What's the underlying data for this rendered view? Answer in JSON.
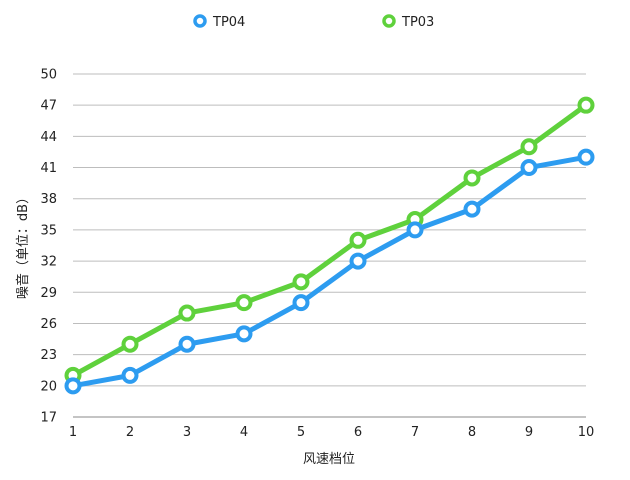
{
  "chart_data": {
    "type": "line",
    "xlabel": "风速档位",
    "ylabel": "噪音（单位：dB）",
    "x": [
      1,
      2,
      3,
      4,
      5,
      6,
      7,
      8,
      9,
      10
    ],
    "ylim": [
      17,
      50
    ],
    "yticks": [
      17,
      20,
      23,
      26,
      29,
      32,
      35,
      38,
      41,
      44,
      47,
      50
    ],
    "grid": true,
    "legend_position": "top",
    "series": [
      {
        "name": "TP04",
        "color": "#2d9cf0",
        "values": [
          20,
          21,
          24,
          25,
          28,
          32,
          35,
          37,
          41,
          42
        ]
      },
      {
        "name": "TP03",
        "color": "#5fd13c",
        "values": [
          21,
          24,
          27,
          28,
          30,
          34,
          36,
          40,
          43,
          47
        ]
      }
    ]
  }
}
